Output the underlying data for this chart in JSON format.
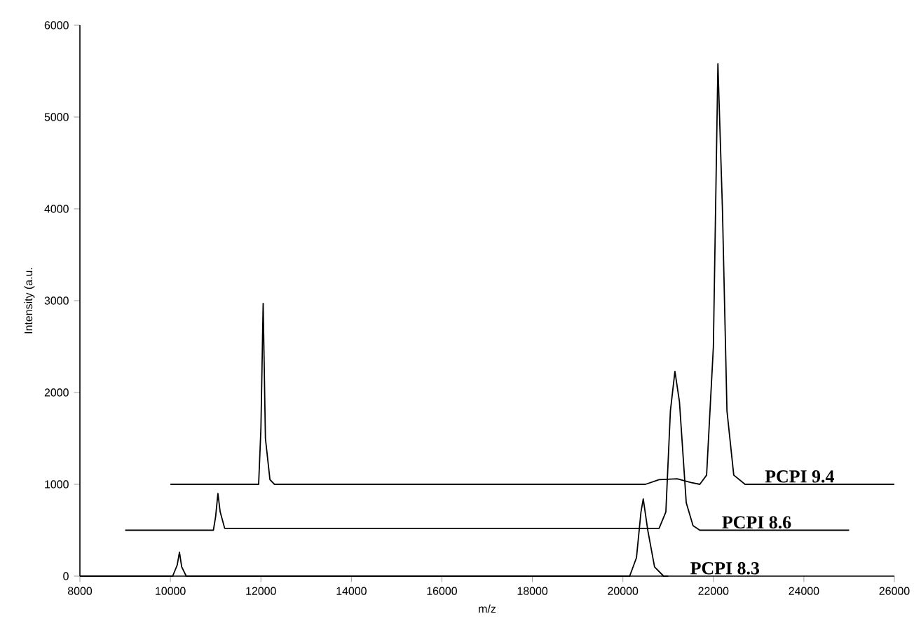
{
  "chart_data": {
    "type": "line",
    "xlabel": "m/z",
    "ylabel": "Intensity (a.u.",
    "xlim": [
      8000,
      26000
    ],
    "xticks": [
      8000,
      10000,
      12000,
      14000,
      16000,
      18000,
      20000,
      22000,
      24000,
      26000
    ],
    "ylim": [
      0,
      6000
    ],
    "yticks": [
      0,
      1000,
      2000,
      3000,
      4000,
      5000,
      6000
    ],
    "grid": false,
    "legend": false,
    "marker": "none",
    "line_style": "solid",
    "series": [
      {
        "name": "PCPI 8.3",
        "color": "#000000",
        "x": [
          8000,
          10050,
          10150,
          10200,
          10250,
          10350,
          20150,
          20300,
          20400,
          20450,
          20550,
          20700,
          20900,
          21000
        ],
        "values": [
          0,
          0,
          120,
          260,
          100,
          0,
          0,
          200,
          700,
          840,
          500,
          100,
          0,
          0
        ]
      },
      {
        "name": "PCPI 8.6",
        "color": "#000000",
        "x": [
          9000,
          10950,
          11000,
          11050,
          11100,
          11200,
          20800,
          20950,
          21050,
          21150,
          21250,
          21400,
          21550,
          21700,
          25000
        ],
        "values": [
          500,
          500,
          650,
          900,
          700,
          520,
          520,
          700,
          1800,
          2230,
          1900,
          800,
          550,
          500,
          500
        ]
      },
      {
        "name": "PCPI 9.4",
        "color": "#000000",
        "x": [
          10000,
          11950,
          12000,
          12050,
          12100,
          12200,
          12300,
          20500,
          20800,
          21200,
          21500,
          21700,
          21850,
          22000,
          22100,
          22200,
          22300,
          22450,
          22700,
          26000
        ],
        "values": [
          1000,
          1000,
          1600,
          2970,
          1500,
          1050,
          1000,
          1000,
          1050,
          1060,
          1020,
          1000,
          1100,
          2500,
          5580,
          4000,
          1800,
          1100,
          1000,
          1000
        ]
      }
    ]
  }
}
